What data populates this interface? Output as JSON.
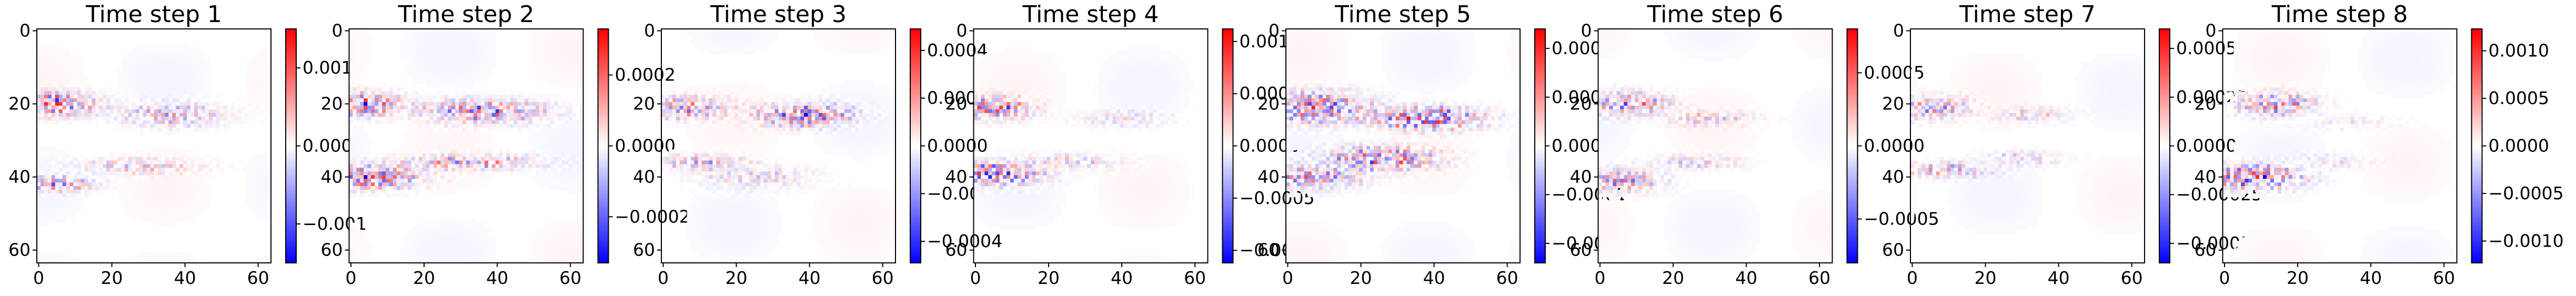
{
  "colors": {
    "cmap_low": "#0000ff",
    "cmap_mid": "#ffffff",
    "cmap_high": "#ff0000",
    "axis": "#000000"
  },
  "chart_data": [
    {
      "type": "heatmap",
      "title": "Time step 1",
      "colormap": "bwr",
      "grid": false,
      "x_range": [
        0,
        63
      ],
      "y_range": [
        0,
        63
      ],
      "x_ticks": [
        0,
        20,
        40,
        60
      ],
      "y_ticks": [
        0,
        20,
        40,
        60
      ],
      "clim": [
        -0.0015,
        0.0015
      ],
      "colorbar_ticks": [
        {
          "value": 0.001,
          "label": "0.001"
        },
        {
          "value": 0.0,
          "label": "0.000"
        },
        {
          "value": -0.001,
          "label": "−0.001"
        }
      ],
      "features": [
        {
          "row": 20,
          "col": 3,
          "row_spread": 3,
          "col_spread": 12,
          "amplitude": 0.0014
        },
        {
          "row": 23,
          "col": 36,
          "row_spread": 3,
          "col_spread": 14,
          "amplitude": 0.0007
        },
        {
          "row": 42,
          "col": 4,
          "row_spread": 2,
          "col_spread": 10,
          "amplitude": 0.0012
        },
        {
          "row": 37,
          "col": 28,
          "row_spread": 2,
          "col_spread": 16,
          "amplitude": 0.0006
        }
      ]
    },
    {
      "type": "heatmap",
      "title": "Time step 2",
      "colormap": "bwr",
      "grid": false,
      "x_range": [
        0,
        63
      ],
      "y_range": [
        0,
        63
      ],
      "x_ticks": [
        0,
        20,
        40,
        60
      ],
      "y_ticks": [
        0,
        20,
        40,
        60
      ],
      "clim": [
        -0.00033,
        0.00033
      ],
      "colorbar_ticks": [
        {
          "value": 0.0002,
          "label": "0.0002"
        },
        {
          "value": 0.0,
          "label": "0.0000"
        },
        {
          "value": -0.0002,
          "label": "−0.0002"
        }
      ],
      "features": [
        {
          "row": 20,
          "col": 3,
          "row_spread": 3,
          "col_spread": 10,
          "amplitude": 0.0003
        },
        {
          "row": 22,
          "col": 36,
          "row_spread": 3,
          "col_spread": 16,
          "amplitude": 0.00025
        },
        {
          "row": 40,
          "col": 4,
          "row_spread": 3,
          "col_spread": 14,
          "amplitude": 0.00032
        },
        {
          "row": 36,
          "col": 32,
          "row_spread": 2,
          "col_spread": 18,
          "amplitude": 0.0002
        }
      ]
    },
    {
      "type": "heatmap",
      "title": "Time step 3",
      "colormap": "bwr",
      "grid": false,
      "x_range": [
        0,
        63
      ],
      "y_range": [
        0,
        63
      ],
      "x_ticks": [
        0,
        20,
        40,
        60
      ],
      "y_ticks": [
        0,
        20,
        40,
        60
      ],
      "clim": [
        -0.00049,
        0.00049
      ],
      "colorbar_ticks": [
        {
          "value": 0.0004,
          "label": "0.0004"
        },
        {
          "value": 0.0002,
          "label": "0.0002"
        },
        {
          "value": 0.0,
          "label": "0.0000"
        },
        {
          "value": -0.0002,
          "label": "−0.0002"
        },
        {
          "value": -0.0004,
          "label": "−0.0004"
        }
      ],
      "features": [
        {
          "row": 23,
          "col": 38,
          "row_spread": 3,
          "col_spread": 12,
          "amplitude": 0.00045
        },
        {
          "row": 21,
          "col": 6,
          "row_spread": 3,
          "col_spread": 12,
          "amplitude": 0.0003
        },
        {
          "row": 36,
          "col": 10,
          "row_spread": 2,
          "col_spread": 12,
          "amplitude": 0.00025
        },
        {
          "row": 40,
          "col": 25,
          "row_spread": 3,
          "col_spread": 14,
          "amplitude": 0.00015
        }
      ]
    },
    {
      "type": "heatmap",
      "title": "Time step 4",
      "colormap": "bwr",
      "grid": false,
      "x_range": [
        0,
        63
      ],
      "y_range": [
        0,
        63
      ],
      "x_ticks": [
        0,
        20,
        40,
        60
      ],
      "y_ticks": [
        0,
        20,
        40,
        60
      ],
      "clim": [
        -0.00112,
        0.00112
      ],
      "colorbar_ticks": [
        {
          "value": 0.001,
          "label": "0.0010"
        },
        {
          "value": 0.0005,
          "label": "0.0005"
        },
        {
          "value": 0.0,
          "label": "0.0000"
        },
        {
          "value": -0.0005,
          "label": "−0.0005"
        },
        {
          "value": -0.001,
          "label": "−0.0010"
        }
      ],
      "features": [
        {
          "row": 21,
          "col": 5,
          "row_spread": 3,
          "col_spread": 10,
          "amplitude": 0.0009
        },
        {
          "row": 39,
          "col": 6,
          "row_spread": 3,
          "col_spread": 12,
          "amplitude": 0.0011
        },
        {
          "row": 24,
          "col": 40,
          "row_spread": 2,
          "col_spread": 12,
          "amplitude": 0.0003
        },
        {
          "row": 36,
          "col": 24,
          "row_spread": 2,
          "col_spread": 14,
          "amplitude": 0.0004
        }
      ]
    },
    {
      "type": "heatmap",
      "title": "Time step 5",
      "colormap": "bwr",
      "grid": false,
      "x_range": [
        0,
        63
      ],
      "y_range": [
        0,
        63
      ],
      "x_ticks": [
        0,
        20,
        40,
        60
      ],
      "y_ticks": [
        0,
        20,
        40,
        60
      ],
      "clim": [
        -0.00024,
        0.00024
      ],
      "colorbar_ticks": [
        {
          "value": 0.0002,
          "label": "0.0002"
        },
        {
          "value": 0.0001,
          "label": "0.0001"
        },
        {
          "value": 0.0,
          "label": "0.0000"
        },
        {
          "value": -0.0001,
          "label": "−0.0001"
        },
        {
          "value": -0.0002,
          "label": "−0.0002"
        }
      ],
      "features": [
        {
          "row": 24,
          "col": 38,
          "row_spread": 3,
          "col_spread": 14,
          "amplitude": 0.00024
        },
        {
          "row": 21,
          "col": 8,
          "row_spread": 4,
          "col_spread": 14,
          "amplitude": 0.0002
        },
        {
          "row": 35,
          "col": 26,
          "row_spread": 3,
          "col_spread": 14,
          "amplitude": 0.00022
        },
        {
          "row": 40,
          "col": 6,
          "row_spread": 3,
          "col_spread": 14,
          "amplitude": 0.00016
        }
      ]
    },
    {
      "type": "heatmap",
      "title": "Time step 6",
      "colormap": "bwr",
      "grid": false,
      "x_range": [
        0,
        63
      ],
      "y_range": [
        0,
        63
      ],
      "x_ticks": [
        0,
        20,
        40,
        60
      ],
      "y_ticks": [
        0,
        20,
        40,
        60
      ],
      "clim": [
        -0.0008,
        0.0008
      ],
      "colorbar_ticks": [
        {
          "value": 0.0005,
          "label": "0.0005"
        },
        {
          "value": 0.0,
          "label": "0.0000"
        },
        {
          "value": -0.0005,
          "label": "−0.0005"
        }
      ],
      "features": [
        {
          "row": 20,
          "col": 8,
          "row_spread": 3,
          "col_spread": 10,
          "amplitude": 0.0006
        },
        {
          "row": 24,
          "col": 30,
          "row_spread": 2,
          "col_spread": 12,
          "amplitude": 0.0003
        },
        {
          "row": 41,
          "col": 6,
          "row_spread": 3,
          "col_spread": 10,
          "amplitude": 0.0005
        },
        {
          "row": 36,
          "col": 26,
          "row_spread": 2,
          "col_spread": 12,
          "amplitude": 0.00025
        }
      ]
    },
    {
      "type": "heatmap",
      "title": "Time step 7",
      "colormap": "bwr",
      "grid": false,
      "x_range": [
        0,
        63
      ],
      "y_range": [
        0,
        63
      ],
      "x_ticks": [
        0,
        20,
        40,
        60
      ],
      "y_ticks": [
        0,
        20,
        40,
        60
      ],
      "clim": [
        -0.0006,
        0.0006
      ],
      "colorbar_ticks": [
        {
          "value": 0.0005,
          "label": "0.00050"
        },
        {
          "value": 0.00025,
          "label": "0.00025"
        },
        {
          "value": 0.0,
          "label": "0.00000"
        },
        {
          "value": -0.00025,
          "label": "−0.00025"
        },
        {
          "value": -0.0005,
          "label": "−0.00050"
        }
      ],
      "features": [
        {
          "row": 21,
          "col": 6,
          "row_spread": 3,
          "col_spread": 10,
          "amplitude": 0.00035
        },
        {
          "row": 23,
          "col": 32,
          "row_spread": 2,
          "col_spread": 10,
          "amplitude": 0.0002
        },
        {
          "row": 38,
          "col": 10,
          "row_spread": 2,
          "col_spread": 12,
          "amplitude": 0.0003
        },
        {
          "row": 35,
          "col": 30,
          "row_spread": 2,
          "col_spread": 10,
          "amplitude": 0.00018
        }
      ]
    },
    {
      "type": "heatmap",
      "title": "Time step 8",
      "colormap": "bwr",
      "grid": false,
      "x_range": [
        0,
        63
      ],
      "y_range": [
        0,
        63
      ],
      "x_ticks": [
        0,
        20,
        40,
        60
      ],
      "y_ticks": [
        0,
        20,
        40,
        60
      ],
      "clim": [
        -0.00123,
        0.00123
      ],
      "colorbar_ticks": [
        {
          "value": 0.001,
          "label": "0.0010"
        },
        {
          "value": 0.0005,
          "label": "0.0005"
        },
        {
          "value": 0.0,
          "label": "0.0000"
        },
        {
          "value": -0.0005,
          "label": "−0.0005"
        },
        {
          "value": -0.001,
          "label": "−0.0010"
        }
      ],
      "features": [
        {
          "row": 20,
          "col": 14,
          "row_spread": 3,
          "col_spread": 10,
          "amplitude": 0.0009
        },
        {
          "row": 40,
          "col": 8,
          "row_spread": 3,
          "col_spread": 12,
          "amplitude": 0.0012
        },
        {
          "row": 25,
          "col": 34,
          "row_spread": 2,
          "col_spread": 12,
          "amplitude": 0.0002
        },
        {
          "row": 36,
          "col": 28,
          "row_spread": 2,
          "col_spread": 12,
          "amplitude": 0.00025
        }
      ]
    }
  ]
}
